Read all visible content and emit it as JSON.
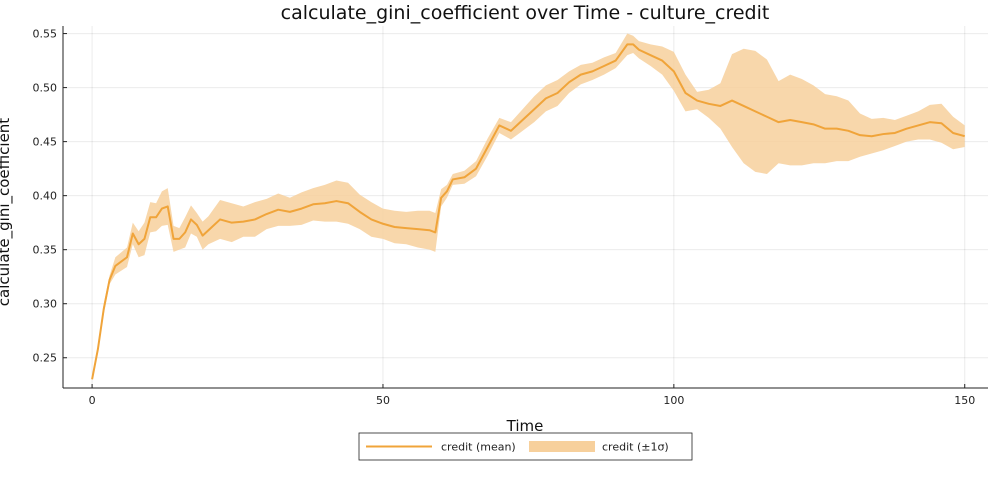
{
  "chart_data": {
    "type": "line",
    "title": "calculate_gini_coefficient over Time - culture_credit",
    "xlabel": "Time",
    "ylabel": "calculate_gini_coefficient",
    "xlim": [
      -5,
      154
    ],
    "ylim": [
      0.222,
      0.557
    ],
    "xticks": [
      0,
      50,
      100,
      150
    ],
    "yticks": [
      0.25,
      0.3,
      0.35,
      0.4,
      0.45,
      0.5,
      0.55
    ],
    "grid": true,
    "legend_position": "bottom-center",
    "colors": {
      "line": "#f0a43a",
      "band": "#f7d09c"
    },
    "legend": [
      "credit (mean)",
      "credit (±1σ)"
    ],
    "series": [
      {
        "name": "credit (mean)",
        "band_name": "credit (±1σ)",
        "x": [
          0,
          1,
          2,
          3,
          4,
          6,
          7,
          8,
          9,
          10,
          11,
          12,
          13,
          14,
          15,
          16,
          17,
          18,
          19,
          20,
          22,
          24,
          26,
          28,
          30,
          32,
          34,
          36,
          38,
          40,
          42,
          44,
          46,
          48,
          50,
          52,
          54,
          56,
          58,
          59,
          60,
          61,
          62,
          64,
          66,
          68,
          70,
          72,
          74,
          76,
          78,
          80,
          82,
          84,
          86,
          88,
          90,
          92,
          93,
          94,
          96,
          98,
          100,
          102,
          104,
          106,
          108,
          110,
          112,
          114,
          116,
          118,
          120,
          122,
          124,
          126,
          128,
          130,
          132,
          134,
          136,
          138,
          140,
          142,
          144,
          146,
          148,
          150
        ],
        "mean": [
          0.23,
          0.258,
          0.295,
          0.322,
          0.335,
          0.343,
          0.365,
          0.355,
          0.36,
          0.38,
          0.38,
          0.388,
          0.39,
          0.36,
          0.36,
          0.366,
          0.378,
          0.373,
          0.363,
          0.368,
          0.378,
          0.375,
          0.376,
          0.378,
          0.383,
          0.387,
          0.385,
          0.388,
          0.392,
          0.393,
          0.395,
          0.393,
          0.385,
          0.378,
          0.374,
          0.371,
          0.37,
          0.369,
          0.368,
          0.366,
          0.398,
          0.404,
          0.415,
          0.417,
          0.425,
          0.445,
          0.465,
          0.46,
          0.47,
          0.48,
          0.49,
          0.495,
          0.505,
          0.512,
          0.515,
          0.52,
          0.525,
          0.54,
          0.54,
          0.535,
          0.53,
          0.525,
          0.515,
          0.495,
          0.488,
          0.485,
          0.483,
          0.488,
          0.483,
          0.478,
          0.473,
          0.468,
          0.47,
          0.468,
          0.466,
          0.462,
          0.462,
          0.46,
          0.456,
          0.455,
          0.457,
          0.458,
          0.462,
          0.465,
          0.468,
          0.467,
          0.458,
          0.455
        ],
        "lower": [
          0.23,
          0.255,
          0.29,
          0.318,
          0.327,
          0.334,
          0.355,
          0.343,
          0.345,
          0.366,
          0.367,
          0.372,
          0.373,
          0.348,
          0.35,
          0.352,
          0.365,
          0.362,
          0.35,
          0.355,
          0.36,
          0.357,
          0.362,
          0.362,
          0.369,
          0.372,
          0.372,
          0.373,
          0.377,
          0.376,
          0.376,
          0.374,
          0.369,
          0.362,
          0.36,
          0.356,
          0.355,
          0.352,
          0.35,
          0.348,
          0.39,
          0.398,
          0.41,
          0.411,
          0.418,
          0.437,
          0.458,
          0.452,
          0.46,
          0.468,
          0.478,
          0.483,
          0.495,
          0.503,
          0.507,
          0.512,
          0.518,
          0.53,
          0.532,
          0.527,
          0.52,
          0.512,
          0.497,
          0.478,
          0.48,
          0.472,
          0.462,
          0.445,
          0.43,
          0.422,
          0.42,
          0.43,
          0.428,
          0.428,
          0.43,
          0.43,
          0.432,
          0.432,
          0.436,
          0.439,
          0.442,
          0.446,
          0.45,
          0.452,
          0.452,
          0.449,
          0.443,
          0.445
        ],
        "upper": [
          0.23,
          0.261,
          0.3,
          0.326,
          0.343,
          0.352,
          0.375,
          0.367,
          0.375,
          0.394,
          0.393,
          0.404,
          0.407,
          0.372,
          0.37,
          0.38,
          0.391,
          0.384,
          0.376,
          0.381,
          0.396,
          0.393,
          0.39,
          0.394,
          0.397,
          0.402,
          0.398,
          0.403,
          0.407,
          0.41,
          0.414,
          0.412,
          0.401,
          0.394,
          0.388,
          0.386,
          0.385,
          0.386,
          0.386,
          0.384,
          0.406,
          0.41,
          0.42,
          0.423,
          0.432,
          0.453,
          0.472,
          0.468,
          0.48,
          0.492,
          0.502,
          0.507,
          0.515,
          0.521,
          0.523,
          0.528,
          0.532,
          0.55,
          0.548,
          0.543,
          0.54,
          0.538,
          0.533,
          0.512,
          0.496,
          0.498,
          0.504,
          0.531,
          0.536,
          0.534,
          0.526,
          0.506,
          0.512,
          0.508,
          0.502,
          0.494,
          0.492,
          0.488,
          0.476,
          0.471,
          0.472,
          0.47,
          0.474,
          0.478,
          0.484,
          0.485,
          0.473,
          0.465
        ]
      }
    ]
  }
}
